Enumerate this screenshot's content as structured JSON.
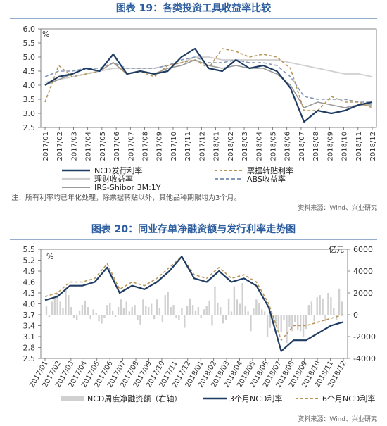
{
  "chart_data": [
    {
      "type": "line",
      "title": "图表 19：各类投资工具收益率比较",
      "unit": "%",
      "ylim": [
        2.5,
        6.0
      ],
      "yticks": [
        "2.5",
        "3.0",
        "3.5",
        "4.0",
        "4.5",
        "5.0",
        "5.5",
        "6.0"
      ],
      "x_tick_labels": [
        "2017/01",
        "2017/02",
        "2017/03",
        "2017/04",
        "2017/05",
        "2017/06",
        "2017/07",
        "2017/08",
        "2017/09",
        "2017/10",
        "2017/11",
        "2017/12",
        "2018/01",
        "2018/02",
        "2018/03",
        "2018/04",
        "2018/05",
        "2018/06",
        "2018/07",
        "2018/08",
        "2018/09",
        "2018/10",
        "2018/11",
        "2018/12"
      ],
      "x": [
        "2017/01",
        "2017/02",
        "2017/03",
        "2017/04",
        "2017/05",
        "2017/06",
        "2017/07",
        "2017/08",
        "2017/09",
        "2017/10",
        "2017/11",
        "2017/12",
        "2018/01",
        "2018/02",
        "2018/03",
        "2018/04",
        "2018/05",
        "2018/06",
        "2018/07",
        "2018/08",
        "2018/09",
        "2018/10",
        "2018/11",
        "2018/12",
        "2018/12"
      ],
      "series": [
        {
          "name": "NCD发行利率",
          "color": "#1f3c63",
          "dash": "",
          "width": 2.2,
          "values": [
            4.0,
            4.3,
            4.4,
            4.6,
            4.5,
            5.1,
            4.4,
            4.5,
            4.4,
            4.5,
            5.0,
            5.3,
            4.6,
            4.5,
            4.9,
            4.6,
            4.7,
            4.5,
            3.9,
            2.7,
            3.1,
            3.0,
            3.1,
            3.3,
            3.4
          ]
        },
        {
          "name": "票据转贴利率",
          "color": "#b8965a",
          "dash": "4 3",
          "width": 1.6,
          "values": [
            3.4,
            4.7,
            4.3,
            4.4,
            4.5,
            4.8,
            4.4,
            4.5,
            4.3,
            4.7,
            4.8,
            4.9,
            4.6,
            5.3,
            5.2,
            5.0,
            5.1,
            5.0,
            4.6,
            3.1,
            3.1,
            3.6,
            3.4,
            3.4,
            3.2
          ]
        },
        {
          "name": "理财收益率",
          "color": "#cfcfcf",
          "dash": "",
          "width": 1.8,
          "values": [
            4.1,
            4.2,
            4.3,
            4.4,
            4.5,
            4.6,
            4.6,
            4.6,
            4.6,
            4.7,
            4.8,
            5.0,
            5.0,
            4.9,
            4.9,
            4.9,
            4.9,
            4.9,
            4.8,
            4.7,
            4.6,
            4.5,
            4.4,
            4.4,
            4.3
          ]
        },
        {
          "name": "ABS收益率",
          "color": "#8598b7",
          "dash": "5 3",
          "width": 1.6,
          "values": [
            4.3,
            4.5,
            4.5,
            4.6,
            4.6,
            4.8,
            4.6,
            4.6,
            4.6,
            4.7,
            4.9,
            5.0,
            4.8,
            4.8,
            4.9,
            4.8,
            4.8,
            4.7,
            4.3,
            3.6,
            3.5,
            3.5,
            3.5,
            3.4,
            3.4
          ]
        },
        {
          "name": "IRS-Shibor 3M:1Y",
          "color": "#9a9a9a",
          "dash": "",
          "width": 1.6,
          "values": [
            4.0,
            4.2,
            4.4,
            4.6,
            4.5,
            4.8,
            4.4,
            4.5,
            4.4,
            4.6,
            4.7,
            4.9,
            4.7,
            4.6,
            4.7,
            4.6,
            4.6,
            4.4,
            4.0,
            3.2,
            3.4,
            3.3,
            3.2,
            3.3,
            3.3
          ]
        }
      ],
      "legend": "bottom",
      "note": "注：所有利率均已年化处理，除票据转贴以外，其他品种期限均为3个月。",
      "source": "资料来源：Wind、兴业研究"
    },
    {
      "type": "bar+line",
      "title": "图表 20：同业存单净融资额与发行利率走势图",
      "left_unit": "%",
      "right_unit": "亿元",
      "ylim_left": [
        2.5,
        5.5
      ],
      "yticks_left": [
        "2.5",
        "2.8",
        "3.1",
        "3.4",
        "3.7",
        "4.0",
        "4.3",
        "4.6",
        "4.9",
        "5.2",
        "5.5"
      ],
      "ylim_right": [
        -4000,
        6000
      ],
      "yticks_right": [
        "-4000",
        "-2000",
        "0",
        "2000",
        "4000",
        "6000"
      ],
      "x_tick_labels": [
        "2017/01",
        "2017/02",
        "2017/03",
        "2017/04",
        "2017/05",
        "2017/06",
        "2017/07",
        "2017/08",
        "2017/09",
        "2017/10",
        "2017/11",
        "2017/12",
        "2018/01",
        "2018/02",
        "2018/03",
        "2018/04",
        "2018/05",
        "2018/06",
        "2018/07",
        "2018/08",
        "2018/09",
        "2018/10",
        "2018/11",
        "2018/12"
      ],
      "bars": {
        "name": "NCD周度净融资额（右轴）",
        "color": "#d0d0d0",
        "values": [
          800,
          -200,
          1200,
          1500,
          2000,
          1200,
          600,
          2500,
          1800,
          700,
          -300,
          -500,
          400,
          900,
          1300,
          700,
          -400,
          500,
          200,
          -600,
          -800,
          -300,
          900,
          1100,
          400,
          -200,
          700,
          1400,
          600,
          1200,
          300,
          700,
          900,
          -500,
          -900,
          1400,
          800,
          700,
          1000,
          -400,
          1400,
          600,
          -700,
          1800,
          2100,
          700,
          900,
          -300,
          -500,
          600,
          -1200,
          800,
          1500,
          900,
          400,
          700,
          -300,
          500,
          800,
          1300,
          -1000,
          2600,
          1100,
          700,
          -800,
          -500,
          1500,
          300,
          2600,
          1400,
          1000,
          2900,
          800,
          300,
          -1500,
          600,
          1400,
          1100,
          500,
          300,
          -2000,
          -1200,
          -800,
          -1000,
          -1400,
          -1600,
          -500,
          -2600,
          -1100,
          -1500,
          -700,
          -1400,
          -1500,
          -2000,
          -1300,
          900,
          1200,
          -600,
          1600,
          1800,
          1500,
          -600,
          2000,
          1600,
          600,
          -500,
          2400,
          1200
        ]
      },
      "series": [
        {
          "name": "3个月NCD利率",
          "color": "#1f3c63",
          "dash": "",
          "width": 2.2,
          "values": [
            4.1,
            4.2,
            4.5,
            4.5,
            4.6,
            5.0,
            4.3,
            4.5,
            4.4,
            4.6,
            4.9,
            5.3,
            4.7,
            4.6,
            4.9,
            4.6,
            4.7,
            4.5,
            3.9,
            2.7,
            3.0,
            3.0,
            3.2,
            3.4,
            3.5
          ]
        },
        {
          "name": "6个月NCD利率",
          "color": "#b8965a",
          "dash": "4 3",
          "width": 1.6,
          "values": [
            4.2,
            4.3,
            4.6,
            4.6,
            4.7,
            5.1,
            4.4,
            4.6,
            4.5,
            4.7,
            5.0,
            5.3,
            4.8,
            4.7,
            5.0,
            4.7,
            4.8,
            4.6,
            4.0,
            3.0,
            3.4,
            3.4,
            3.5,
            3.6,
            3.7
          ]
        }
      ],
      "legend": "bottom",
      "source": "资料来源：Wind、兴业研究"
    }
  ]
}
